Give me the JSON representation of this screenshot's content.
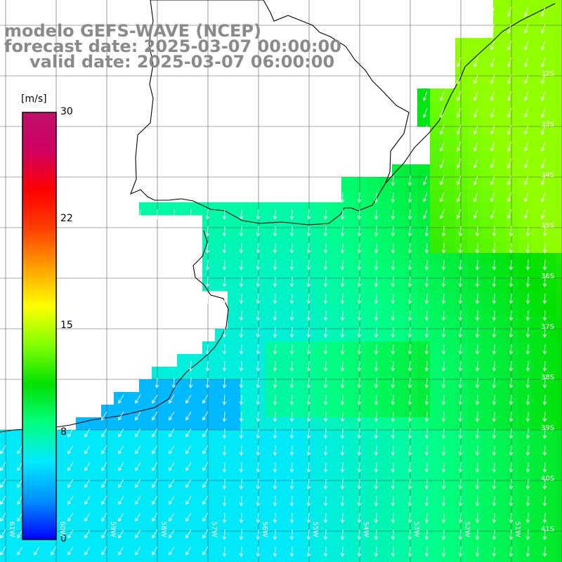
{
  "title": {
    "line1": "modelo GEFS-WAVE (NCEP)",
    "line2": "forecast date: 2025-03-07 00:00:00",
    "line3": "valid date: 2025-03-07 06:00:00"
  },
  "colorbar": {
    "unit": "[m/s]",
    "ticks": [
      "30",
      "22",
      "15",
      "8",
      "0"
    ],
    "tick_values": [
      30,
      22,
      15,
      8,
      0
    ],
    "range": [
      0,
      30
    ],
    "colors": [
      "#0000ff",
      "#0090ff",
      "#00e8ff",
      "#00ff80",
      "#00e000",
      "#80ff00",
      "#ffff00",
      "#ffa000",
      "#ff4000",
      "#ff0000",
      "#d00060",
      "#c0106a"
    ]
  },
  "grid": {
    "lat_labels": [
      "32S",
      "33S",
      "34S",
      "35S",
      "36S",
      "37S",
      "38S",
      "39S",
      "40S",
      "41S"
    ],
    "lon_labels": [
      "61W",
      "60W",
      "59W",
      "58W",
      "57W",
      "56W",
      "55W",
      "54W",
      "53W",
      "52W",
      "51W"
    ]
  },
  "field": {
    "variable": "wind speed",
    "arrows_color": "#ffffff",
    "coast_color": "#000000"
  }
}
